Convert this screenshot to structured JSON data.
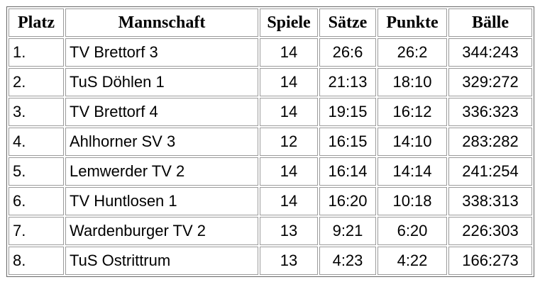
{
  "colors": {
    "background": "#ffffff",
    "text": "#000000",
    "table_frame_border": "#676767",
    "cell_border": "#9b9b9b"
  },
  "chart_data": {
    "type": "table",
    "columns": [
      "Platz",
      "Mannschaft",
      "Spiele",
      "Sätze",
      "Punkte",
      "Bälle"
    ],
    "column_keys": [
      "platz",
      "mannschaft",
      "spiele",
      "saetze",
      "punkte",
      "baelle"
    ],
    "rows": [
      [
        "1.",
        "TV Brettorf 3",
        "14",
        "26:6",
        "26:2",
        "344:243"
      ],
      [
        "2.",
        "TuS Döhlen 1",
        "14",
        "21:13",
        "18:10",
        "329:272"
      ],
      [
        "3.",
        "TV Brettorf 4",
        "14",
        "19:15",
        "16:12",
        "336:323"
      ],
      [
        "4.",
        "Ahlhorner SV 3",
        "12",
        "16:15",
        "14:10",
        "283:282"
      ],
      [
        "5.",
        "Lemwerder TV 2",
        "14",
        "16:14",
        "14:14",
        "241:254"
      ],
      [
        "6.",
        "TV Huntlosen 1",
        "14",
        "16:20",
        "10:18",
        "338:313"
      ],
      [
        "7.",
        "Wardenburger TV 2",
        "13",
        "9:21",
        "6:20",
        "226:303"
      ],
      [
        "8.",
        "TuS Ostrittrum",
        "13",
        "4:23",
        "4:22",
        "166:273"
      ]
    ]
  }
}
